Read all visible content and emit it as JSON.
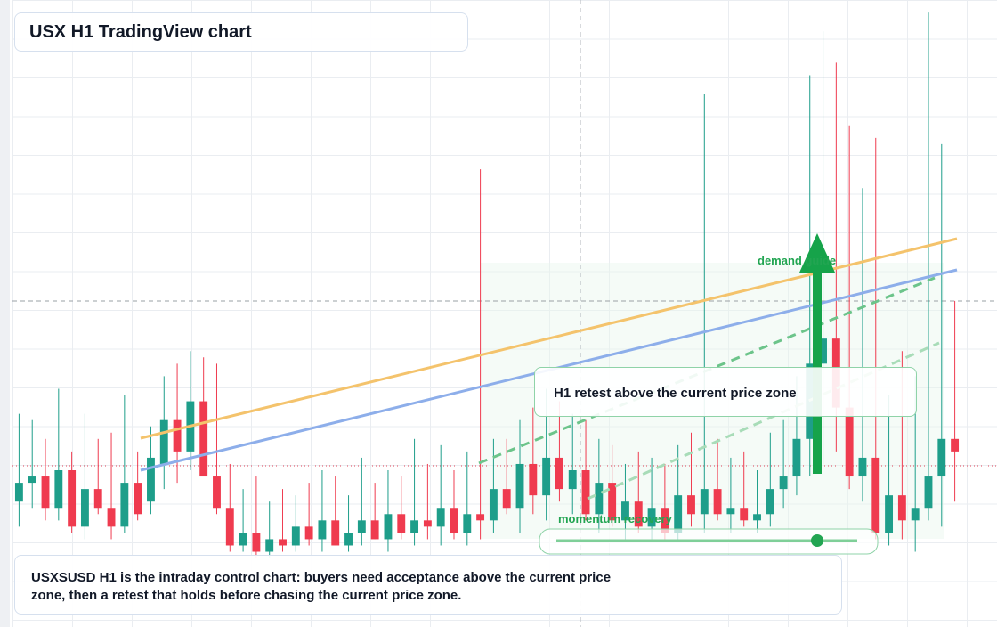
{
  "chart_data": {
    "type": "candlestick",
    "title": "USX H1 TradingView chart",
    "caption": "USXSUSD H1 is the intraday control chart: buyers need acceptance above the current price zone, then a retest that holds before chasing the current price zone.",
    "annotations": [
      "demand guide",
      "momentum recovery",
      "H1 retest above the current price zone"
    ],
    "up_color": "#1e9e8a",
    "down_color": "#ef3b4f",
    "ylim": [
      0,
      100
    ],
    "ohlc": [
      [
        20,
        34,
        16,
        23
      ],
      [
        23,
        33,
        19,
        24
      ],
      [
        24,
        30,
        17,
        19
      ],
      [
        19,
        38,
        17,
        25
      ],
      [
        25,
        28,
        15,
        16
      ],
      [
        16,
        34,
        14,
        22
      ],
      [
        22,
        30,
        18,
        19
      ],
      [
        19,
        31,
        14,
        16
      ],
      [
        16,
        37,
        15,
        23
      ],
      [
        23,
        28,
        17,
        18
      ],
      [
        20,
        32,
        18,
        27
      ],
      [
        26,
        40,
        22,
        33
      ],
      [
        33,
        42,
        23,
        28
      ],
      [
        28,
        44,
        25,
        36
      ],
      [
        36,
        43,
        24,
        24
      ],
      [
        24,
        42,
        18,
        19
      ],
      [
        19,
        26,
        12,
        13
      ],
      [
        13,
        22,
        12,
        15
      ],
      [
        15,
        24,
        11,
        12
      ],
      [
        12,
        20,
        11,
        14
      ],
      [
        14,
        22,
        12,
        13
      ],
      [
        13,
        21,
        12,
        16
      ],
      [
        16,
        23,
        13,
        14
      ],
      [
        14,
        25,
        12,
        17
      ],
      [
        17,
        24,
        13,
        13
      ],
      [
        13,
        21,
        12,
        15
      ],
      [
        15,
        27,
        13,
        17
      ],
      [
        17,
        23,
        14,
        14
      ],
      [
        14,
        25,
        12,
        18
      ],
      [
        18,
        24,
        14,
        15
      ],
      [
        15,
        30,
        13,
        17
      ],
      [
        17,
        26,
        14,
        16
      ],
      [
        16,
        29,
        13,
        19
      ],
      [
        19,
        25,
        14,
        15
      ],
      [
        15,
        28,
        13,
        18
      ],
      [
        18,
        73,
        14,
        17
      ],
      [
        17,
        30,
        15,
        22
      ],
      [
        22,
        30,
        18,
        19
      ],
      [
        19,
        33,
        15,
        26
      ],
      [
        26,
        35,
        18,
        21
      ],
      [
        21,
        38,
        17,
        27
      ],
      [
        27,
        36,
        20,
        22
      ],
      [
        22,
        34,
        18,
        25
      ],
      [
        25,
        33,
        17,
        18
      ],
      [
        18,
        30,
        15,
        23
      ],
      [
        23,
        29,
        16,
        17
      ],
      [
        17,
        26,
        14,
        20
      ],
      [
        20,
        28,
        15,
        16
      ],
      [
        16,
        27,
        14,
        19
      ],
      [
        19,
        26,
        14,
        15
      ],
      [
        15,
        29,
        14,
        21
      ],
      [
        21,
        31,
        16,
        18
      ],
      [
        18,
        85,
        15,
        22
      ],
      [
        22,
        30,
        17,
        18
      ],
      [
        18,
        27,
        15,
        19
      ],
      [
        19,
        28,
        16,
        17
      ],
      [
        17,
        25,
        15,
        18
      ],
      [
        18,
        31,
        16,
        22
      ],
      [
        22,
        33,
        19,
        24
      ],
      [
        24,
        40,
        21,
        30
      ],
      [
        30,
        88,
        24,
        42
      ],
      [
        42,
        95,
        26,
        46
      ],
      [
        46,
        90,
        28,
        35
      ],
      [
        35,
        80,
        22,
        24
      ],
      [
        24,
        70,
        20,
        27
      ],
      [
        27,
        78,
        14,
        15
      ],
      [
        15,
        37,
        13,
        21
      ],
      [
        21,
        44,
        14,
        17
      ],
      [
        17,
        40,
        12,
        19
      ],
      [
        19,
        98,
        17,
        24
      ],
      [
        24,
        77,
        16,
        30
      ],
      [
        30,
        52,
        20,
        28
      ]
    ]
  }
}
